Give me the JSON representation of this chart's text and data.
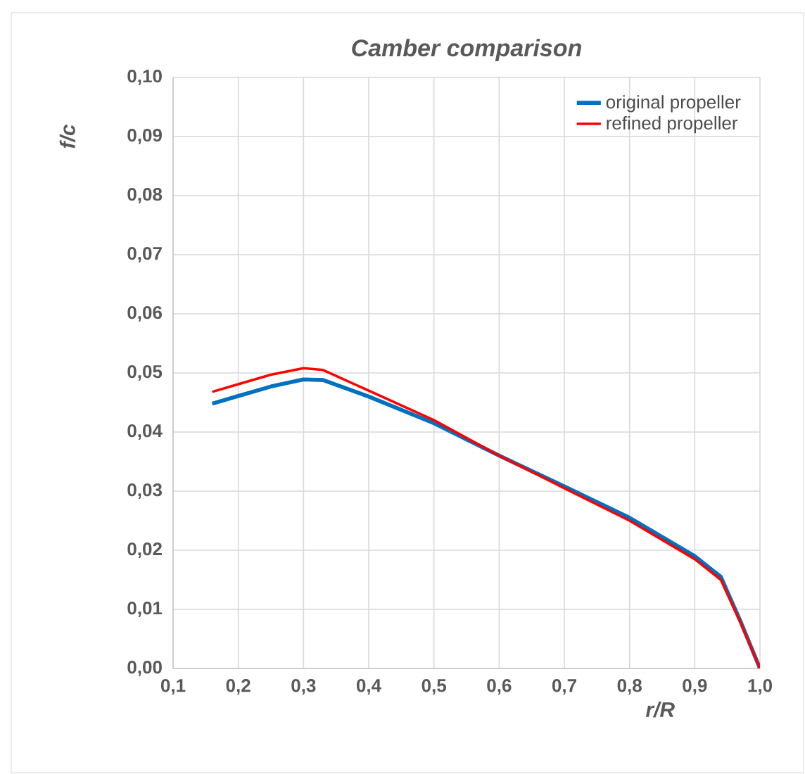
{
  "chart_data": {
    "type": "line",
    "title": "Camber comparison",
    "xlabel": "r/R",
    "ylabel": "f/c",
    "xlim": [
      0.1,
      1.0
    ],
    "xticks": [
      {
        "value": 0.1,
        "label": "0,1"
      },
      {
        "value": 0.2,
        "label": "0,2"
      },
      {
        "value": 0.3,
        "label": "0,3"
      },
      {
        "value": 0.4,
        "label": "0,4"
      },
      {
        "value": 0.5,
        "label": "0,5"
      },
      {
        "value": 0.6,
        "label": "0,6"
      },
      {
        "value": 0.7,
        "label": "0,7"
      },
      {
        "value": 0.8,
        "label": "0,8"
      },
      {
        "value": 0.9,
        "label": "0,9"
      },
      {
        "value": 1.0,
        "label": "1,0"
      }
    ],
    "ylim": [
      0,
      0.1
    ],
    "yticks": [
      {
        "value": 0,
        "label": "0,00"
      },
      {
        "value": 0.01,
        "label": "0,01"
      },
      {
        "value": 0.02,
        "label": "0,02"
      },
      {
        "value": 0.03,
        "label": "0,03"
      },
      {
        "value": 0.04,
        "label": "0,04"
      },
      {
        "value": 0.05,
        "label": "0,05"
      },
      {
        "value": 0.06,
        "label": "0,06"
      },
      {
        "value": 0.07,
        "label": "0,07"
      },
      {
        "value": 0.08,
        "label": "0,08"
      },
      {
        "value": 0.09,
        "label": "0,09"
      },
      {
        "value": 0.1,
        "label": "0,10"
      }
    ],
    "grid": true,
    "legend": "top right",
    "marker": "none",
    "line_style": "solid",
    "series": [
      {
        "name": "original propeller",
        "color": "#0070c0",
        "x": [
          0.16,
          0.2,
          0.25,
          0.3,
          0.33,
          0.4,
          0.5,
          0.6,
          0.7,
          0.8,
          0.9,
          0.94,
          0.97,
          1.0
        ],
        "values": [
          0.0448,
          0.0461,
          0.0477,
          0.0489,
          0.0488,
          0.046,
          0.0415,
          0.036,
          0.0308,
          0.0255,
          0.019,
          0.0155,
          0.008,
          0.0
        ]
      },
      {
        "name": "refined propeller",
        "color": "#ff0000",
        "x": [
          0.16,
          0.2,
          0.25,
          0.3,
          0.33,
          0.4,
          0.5,
          0.6,
          0.7,
          0.8,
          0.9,
          0.94,
          0.97,
          1.0
        ],
        "values": [
          0.0468,
          0.0481,
          0.0497,
          0.0508,
          0.0505,
          0.047,
          0.042,
          0.036,
          0.0305,
          0.025,
          0.0185,
          0.015,
          0.0078,
          0.0
        ]
      }
    ]
  }
}
